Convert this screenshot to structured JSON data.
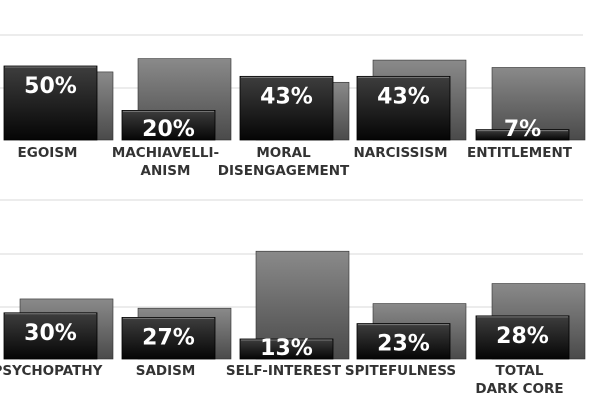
{
  "chart_data": [
    {
      "type": "bar",
      "categories": [
        [
          "EGOISM"
        ],
        [
          "MACHIAVELLI-",
          "ANISM"
        ],
        [
          "MORAL",
          "DISENGAGEMENT"
        ],
        [
          "NARCISSISM"
        ],
        [
          "ENTITLEMENT"
        ]
      ],
      "series": [
        {
          "values": [
            50,
            20,
            43,
            43,
            7
          ]
        },
        {
          "values": [
            46,
            55,
            39,
            54,
            49
          ]
        }
      ],
      "labels": [
        "50%",
        "20%",
        "43%",
        "43%",
        "7%"
      ],
      "ylim": [
        0,
        100
      ],
      "grid": true
    },
    {
      "type": "bar",
      "categories": [
        [
          "PSYCHOPATHY"
        ],
        [
          "SADISM"
        ],
        [
          "SELF-INTEREST"
        ],
        [
          "SPITEFULNESS"
        ],
        [
          "TOTAL",
          "DARK CORE"
        ]
      ],
      "series": [
        {
          "values": [
            30,
            27,
            13,
            23,
            28
          ]
        },
        {
          "values": [
            39,
            33,
            70,
            36,
            49
          ]
        }
      ],
      "labels": [
        "30%",
        "27%",
        "13%",
        "23%",
        "28%"
      ],
      "ylim": [
        0,
        100
      ],
      "grid": true
    }
  ],
  "colors": {
    "front_top": "#3e3e3e",
    "front_bottom": "#050505",
    "back_top": "#8a8a8a",
    "back_bottom": "#4a4a4a",
    "grid": "#e6e6e6",
    "label_text": "#333333",
    "value_text": "#ffffff"
  }
}
